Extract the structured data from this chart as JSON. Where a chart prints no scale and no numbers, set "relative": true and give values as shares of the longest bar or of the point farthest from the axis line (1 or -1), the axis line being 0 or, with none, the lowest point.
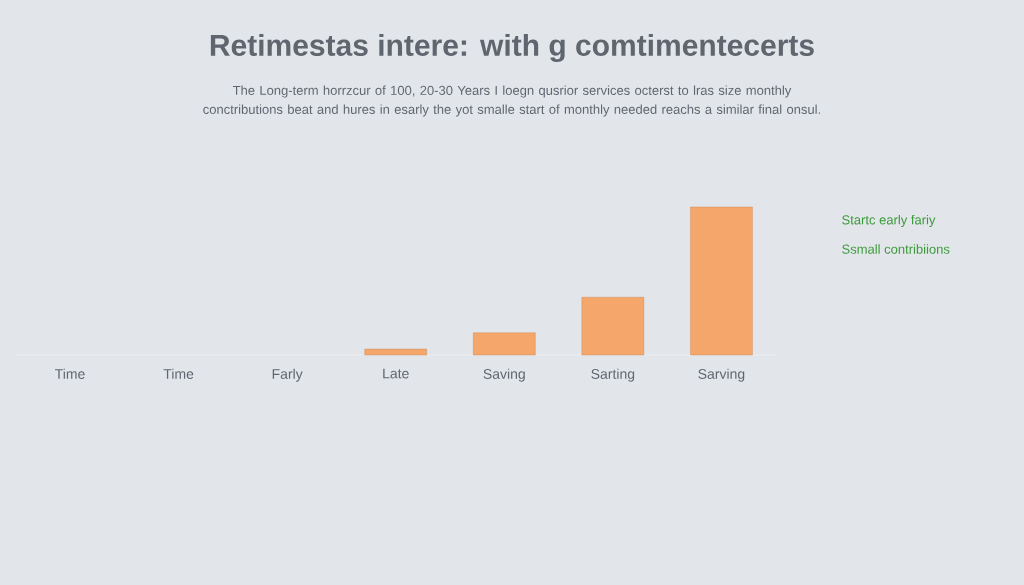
{
  "chart_data": {
    "type": "bar",
    "title": "Retimestas intere: with  g comtimentecerts",
    "subtitle": "The Long-term horrzcur of 100, 20-30 Years I loegn qusrior services octerst to lras size monthly conctributions beat and hures in esarly the yot smalle start of monthly needed reachs a similar final onsul.",
    "categories": [
      "Time",
      "Time",
      "Farly",
      "Late",
      "Saving",
      "Sarting",
      "Sarving"
    ],
    "values": [
      null,
      null,
      null,
      0.04,
      0.15,
      0.39,
      1
    ],
    "color": "#f5a66a",
    "relative": true,
    "annotations": [
      "Startc early fariy",
      "Ssmall contribiions"
    ]
  }
}
